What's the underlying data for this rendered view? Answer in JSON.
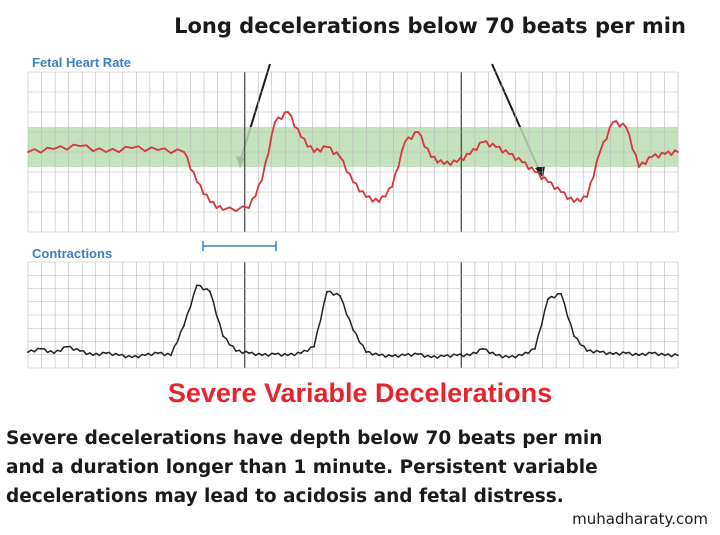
{
  "annotation": "Long decelerations below 70 beats per min",
  "headline": "Severe Variable Decelerations",
  "body": {
    "line1": "Severe decelerations have depth below 70 beats per min",
    "line2": "and a duration longer than 1 minute. Persistent variable",
    "line3": "decelerations may lead to acidosis and fetal distress."
  },
  "watermark": "muhadharaty.com",
  "colors": {
    "fhr_trace": "#d9343c",
    "normal_band": "#b9ddb1",
    "contraction_trace": "#222222",
    "grid": "#b9b9b9",
    "panel_title": "#3b7fc4",
    "headline": "#e4252d"
  },
  "chart_data": [
    {
      "type": "line",
      "title": "Fetal Heart Rate",
      "band": [
        115,
        155
      ],
      "ylim": [
        50,
        210
      ],
      "x": [
        0,
        4,
        8,
        12,
        16,
        20,
        24,
        26,
        28,
        30,
        34,
        36,
        38,
        40,
        42,
        44,
        46,
        48,
        50,
        52,
        54,
        56,
        58,
        60,
        62,
        64,
        66,
        68,
        70,
        72,
        74,
        76,
        78,
        80,
        82,
        84,
        86,
        88,
        90,
        92,
        94,
        96,
        98,
        100
      ],
      "values": [
        130,
        133,
        136,
        130,
        134,
        132,
        130,
        100,
        80,
        72,
        74,
        102,
        160,
        170,
        145,
        130,
        135,
        125,
        100,
        85,
        80,
        95,
        140,
        150,
        125,
        118,
        120,
        128,
        140,
        135,
        128,
        120,
        110,
        100,
        90,
        80,
        85,
        130,
        160,
        155,
        115,
        125,
        128,
        130
      ]
    },
    {
      "type": "line",
      "title": "Contractions",
      "ylim": [
        0,
        100
      ],
      "x": [
        0,
        2,
        4,
        6,
        8,
        10,
        12,
        14,
        16,
        18,
        20,
        22,
        24,
        26,
        28,
        30,
        32,
        34,
        36,
        38,
        40,
        42,
        44,
        46,
        48,
        50,
        52,
        54,
        56,
        58,
        60,
        62,
        64,
        66,
        68,
        70,
        72,
        74,
        76,
        78,
        80,
        82,
        84,
        86,
        88,
        90,
        92,
        94,
        96,
        98,
        100
      ],
      "values": [
        15,
        18,
        14,
        20,
        16,
        12,
        14,
        12,
        10,
        12,
        14,
        12,
        40,
        78,
        72,
        30,
        16,
        14,
        12,
        13,
        12,
        14,
        20,
        72,
        68,
        36,
        15,
        12,
        11,
        12,
        13,
        10,
        11,
        12,
        12,
        18,
        12,
        10,
        12,
        18,
        65,
        70,
        30,
        16,
        15,
        13,
        14,
        12,
        14,
        12,
        12
      ]
    }
  ]
}
